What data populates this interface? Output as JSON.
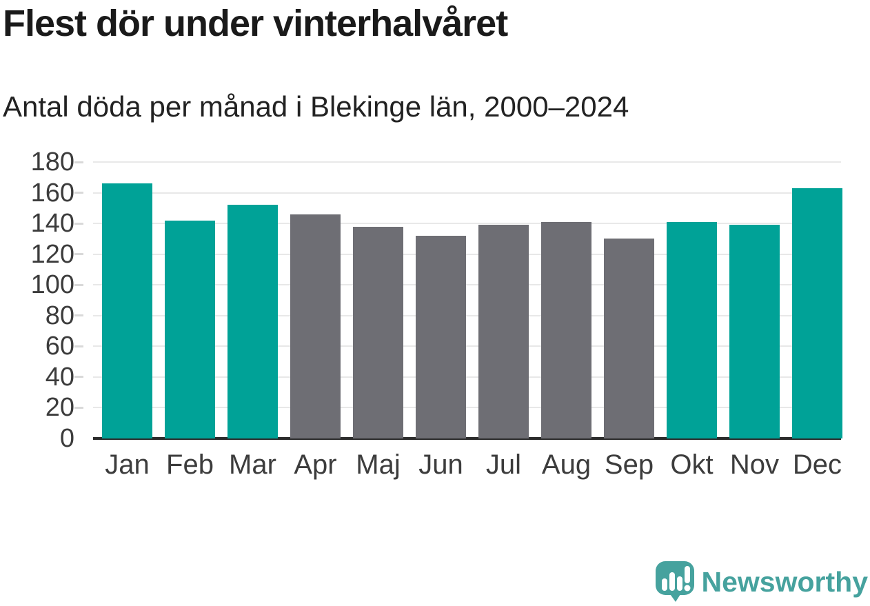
{
  "header": {
    "title": "Flest dör under vinterhalvåret",
    "subtitle": "Antal döda per månad i Blekinge län, 2000–2024"
  },
  "chart_data": {
    "type": "bar",
    "title": "Flest dör under vinterhalvåret",
    "subtitle": "Antal döda per månad i Blekinge län, 2000–2024",
    "categories": [
      "Jan",
      "Feb",
      "Mar",
      "Apr",
      "Maj",
      "Jun",
      "Jul",
      "Aug",
      "Sep",
      "Okt",
      "Nov",
      "Dec"
    ],
    "values": [
      166,
      142,
      152,
      146,
      138,
      132,
      139,
      141,
      130,
      141,
      139,
      163
    ],
    "highlighted_months": [
      true,
      true,
      true,
      false,
      false,
      false,
      false,
      false,
      false,
      true,
      true,
      true
    ],
    "xlabel": "",
    "ylabel": "",
    "ylim": [
      0,
      180
    ],
    "ytick_step": 20,
    "yticks": [
      0,
      20,
      40,
      60,
      80,
      100,
      120,
      140,
      160,
      180
    ],
    "grid": true,
    "legend": "none"
  },
  "colors": {
    "bar_highlight": "#00a297",
    "bar_muted": "#6e6e74",
    "gridline": "#e8e8e8",
    "axis_line": "#2b2b2b",
    "tick_mark": "#d9d9d9",
    "title_text": "#1a1a1a",
    "tick_text": "#3c3c3c",
    "brand_teal": "#46a29e"
  },
  "footer": {
    "brand": "Newsworthy",
    "icon": "newsworthy-bubble-bar-chart-icon"
  }
}
